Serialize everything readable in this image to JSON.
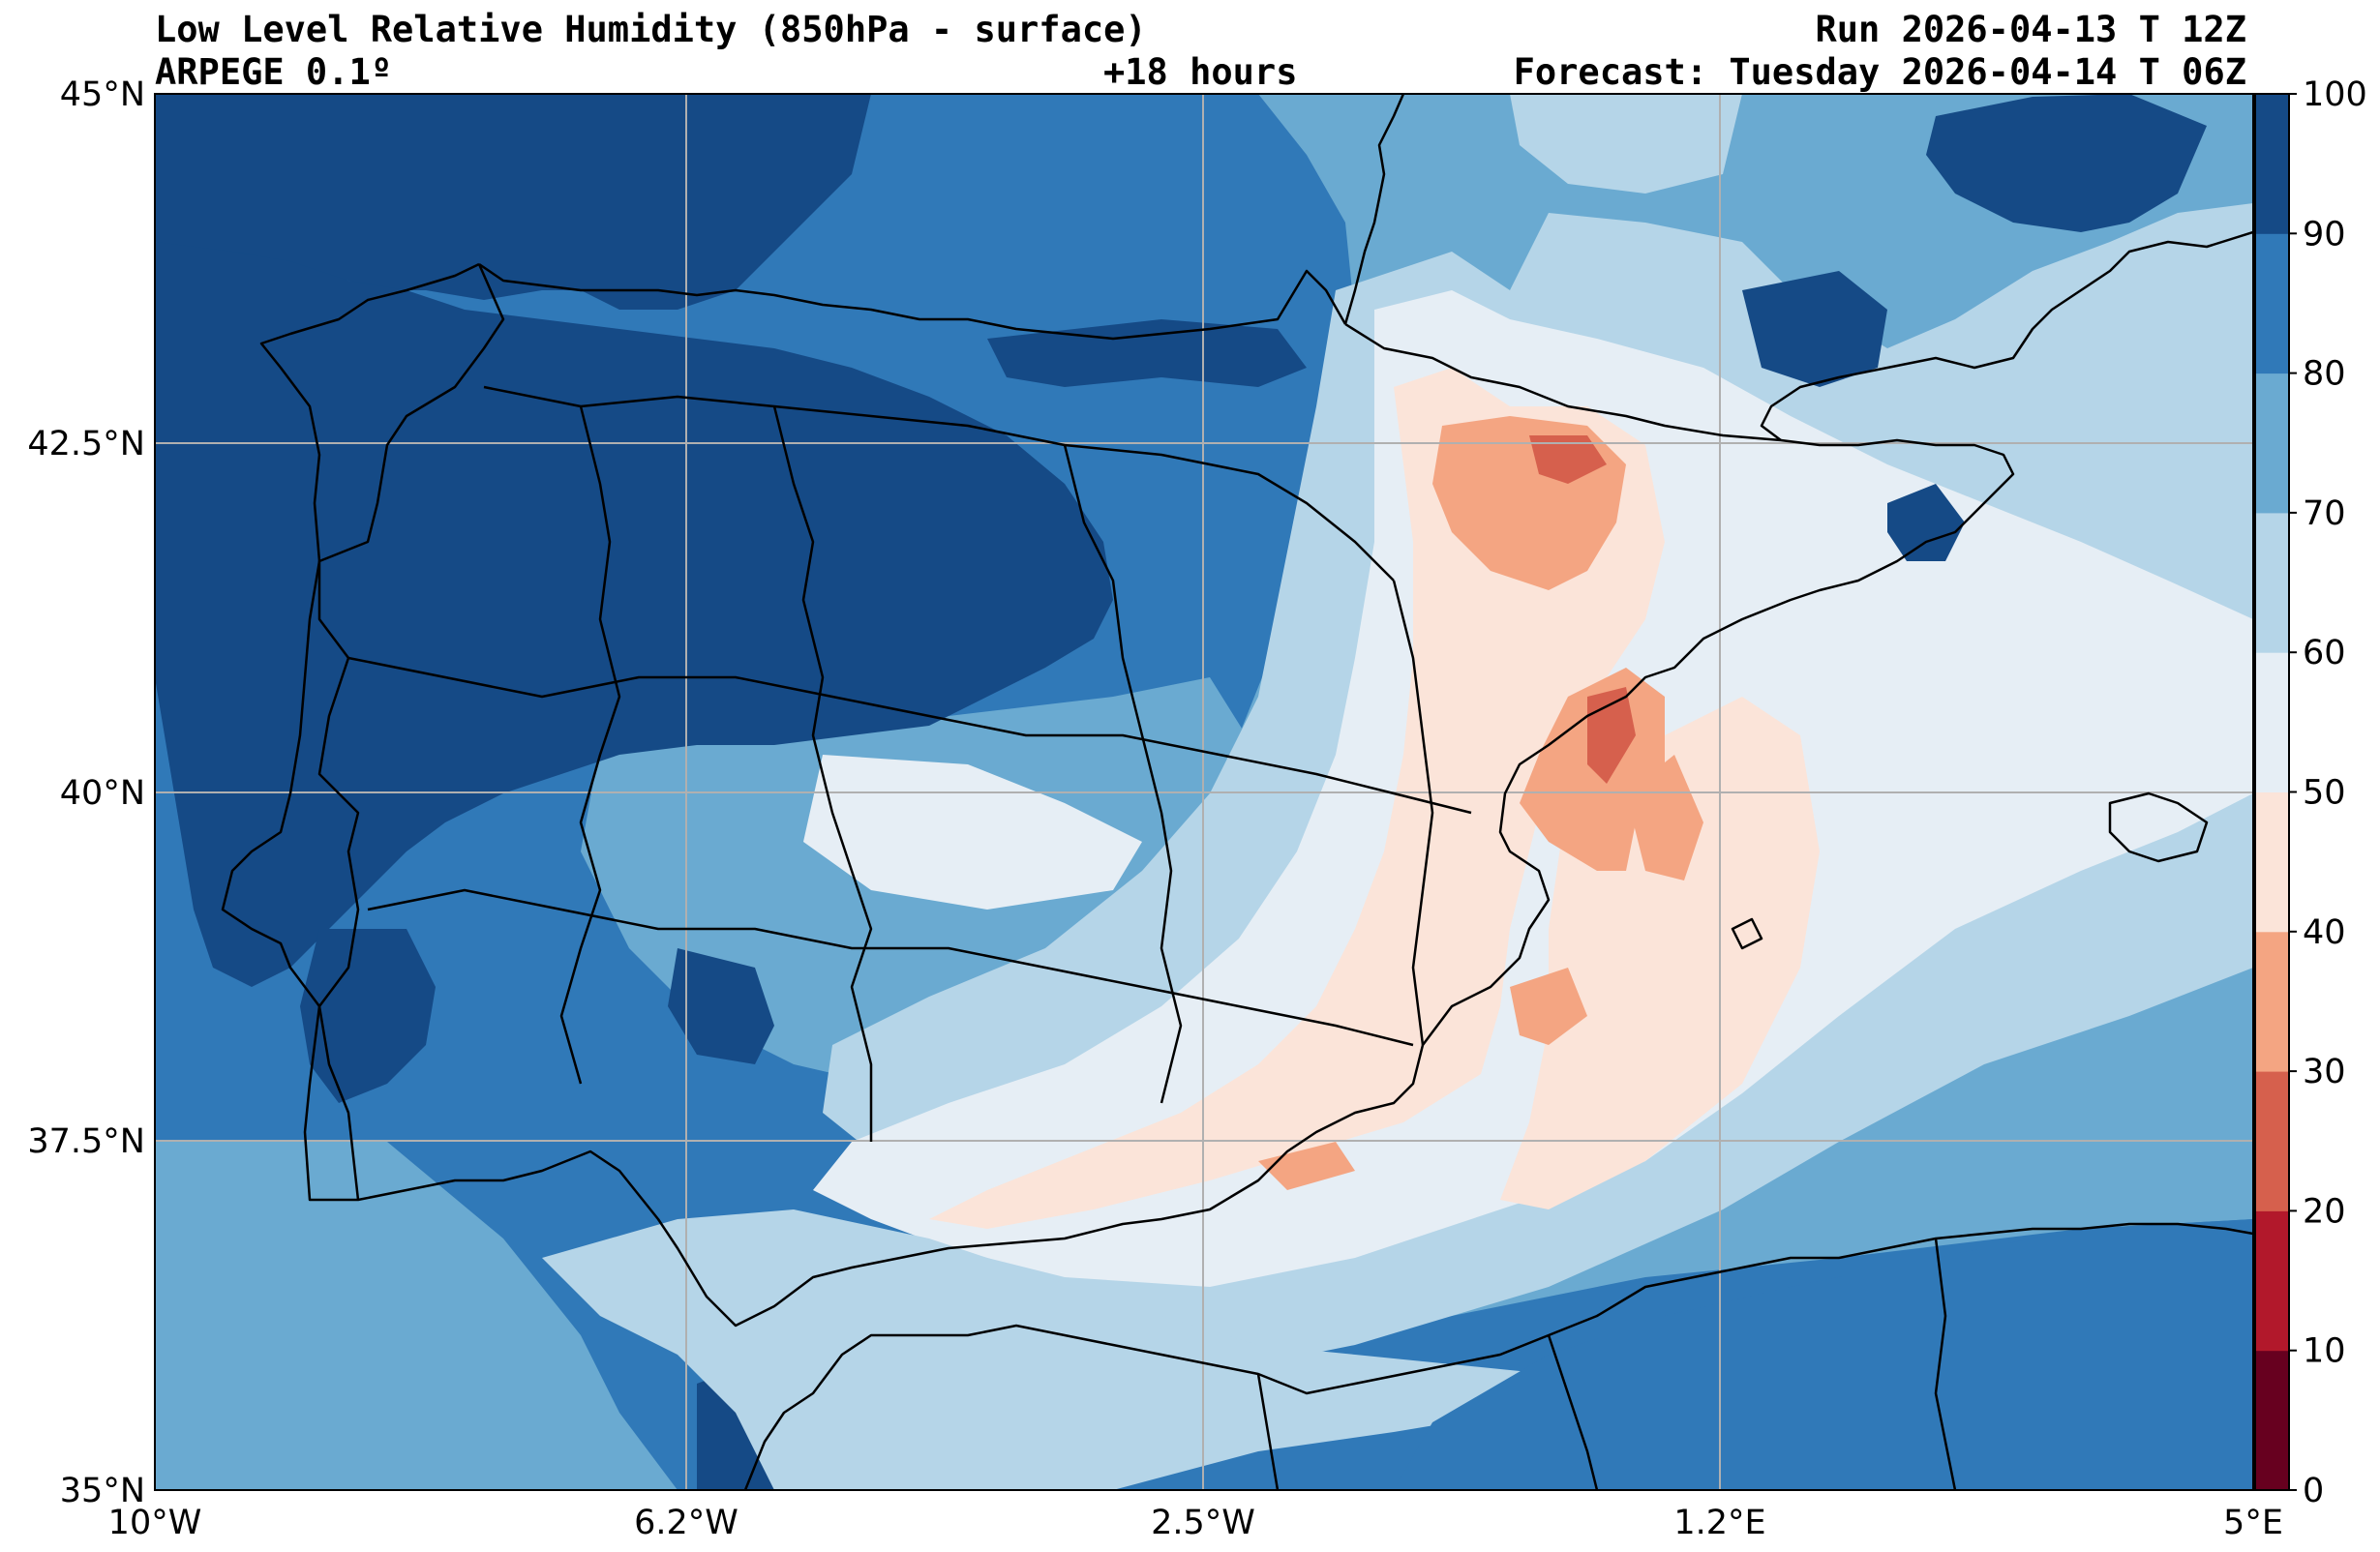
{
  "header": {
    "title": "Low Level Relative Humidity (850hPa - surface)",
    "model": "ARPEGE 0.1º",
    "lead": "+18 hours",
    "run": "Run 2026-04-13 T 12Z",
    "forecast": "Forecast: Tuesday 2026-04-14 T 06Z"
  },
  "axes": {
    "lat_ticks": [
      "45°N",
      "42.5°N",
      "40°N",
      "37.5°N",
      "35°N"
    ],
    "lon_ticks": [
      "10°W",
      "6.2°W",
      "2.5°W",
      "1.2°E",
      "5°E"
    ]
  },
  "colorbar": {
    "ticks": [
      "0",
      "10",
      "20",
      "30",
      "40",
      "50",
      "60",
      "70",
      "80",
      "90",
      "100"
    ],
    "colors": [
      "#67001f",
      "#b2182b",
      "#d6604d",
      "#f4a582",
      "#fbe4d9",
      "#e6eef5",
      "#b5d5e8",
      "#6aaad1",
      "#3079b8",
      "#154a86"
    ]
  },
  "map": {
    "extent": "35°N–45°N, 10°W–5°E",
    "grid": "on",
    "field_colors": {
      "rh_90_100": "#154a86",
      "rh_80_90": "#3079b8",
      "rh_70_80": "#6aaad1",
      "rh_60_70": "#b5d5e8",
      "rh_50_60": "#e6eef5",
      "rh_40_50": "#fbe4d9",
      "rh_30_40": "#f4a582",
      "rh_20_30": "#d6604d"
    }
  }
}
